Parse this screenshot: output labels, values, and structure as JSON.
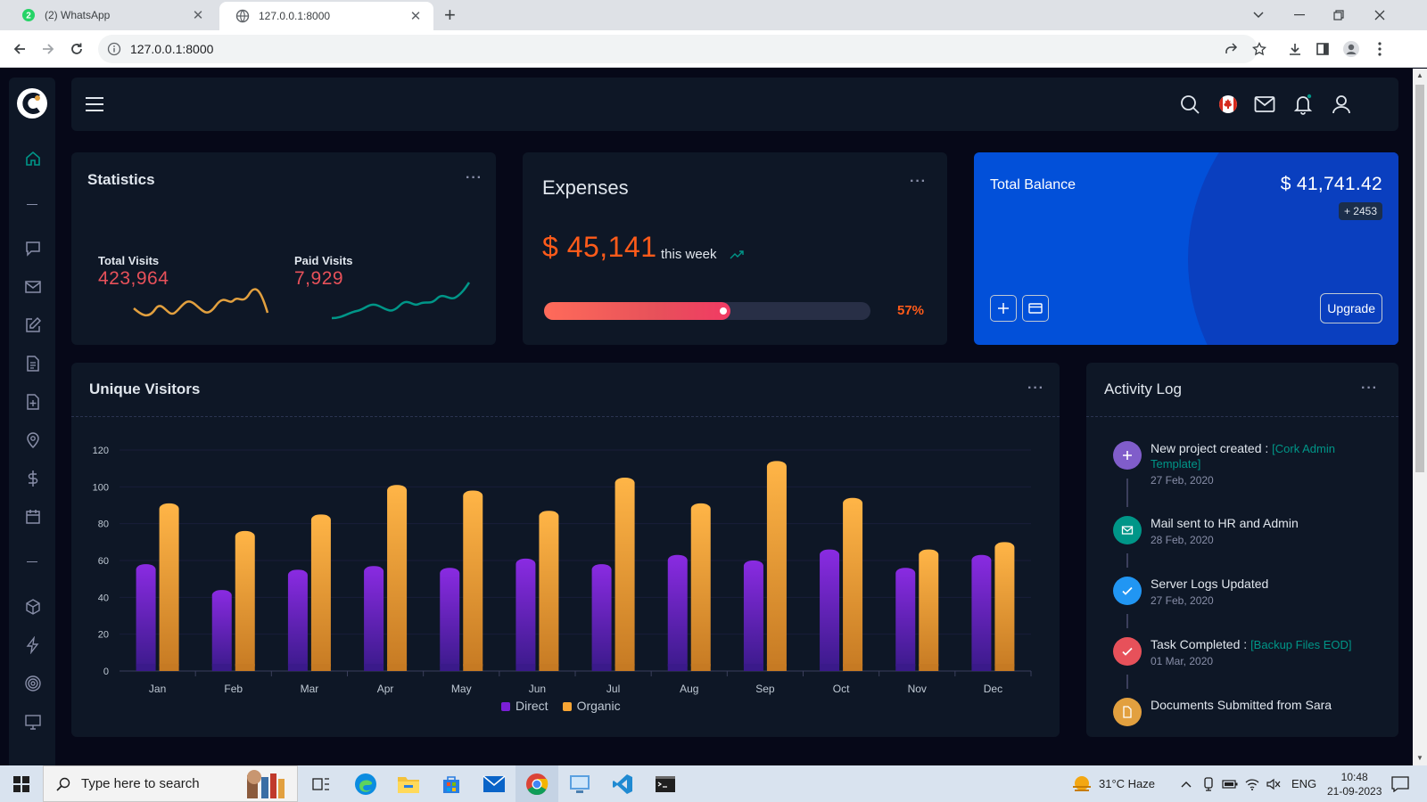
{
  "browser": {
    "tabs": [
      {
        "title": "(2) WhatsApp",
        "active": false
      },
      {
        "title": "127.0.0.1:8000",
        "active": true
      }
    ],
    "address": "127.0.0.1:8000"
  },
  "statistics": {
    "title": "Statistics",
    "total_visits_label": "Total Visits",
    "total_visits_value": "423,964",
    "paid_visits_label": "Paid Visits",
    "paid_visits_value": "7,929"
  },
  "expenses": {
    "title": "Expenses",
    "amount": "$ 45,141",
    "period": "this week",
    "progress_percent": 57,
    "progress_label": "57%"
  },
  "balance": {
    "title": "Total Balance",
    "value": "$ 41,741.42",
    "badge": "+ 2453",
    "upgrade_label": "Upgrade"
  },
  "visitors": {
    "title": "Unique Visitors",
    "legend": [
      "Direct",
      "Organic"
    ]
  },
  "chart_data": {
    "type": "bar",
    "categories": [
      "Jan",
      "Feb",
      "Mar",
      "Apr",
      "May",
      "Jun",
      "Jul",
      "Aug",
      "Sep",
      "Oct",
      "Nov",
      "Dec"
    ],
    "series": [
      {
        "name": "Direct",
        "values": [
          58,
          44,
          55,
          57,
          56,
          61,
          58,
          63,
          60,
          66,
          56,
          63
        ],
        "color": "#7b1fd6"
      },
      {
        "name": "Organic",
        "values": [
          91,
          76,
          85,
          101,
          98,
          87,
          105,
          91,
          114,
          94,
          66,
          70
        ],
        "color": "#f7a534"
      }
    ],
    "yticks": [
      0,
      20,
      40,
      60,
      80,
      100,
      120
    ],
    "ylim": [
      0,
      120
    ],
    "legend_position": "bottom"
  },
  "activity": {
    "title": "Activity Log",
    "items": [
      {
        "text": "New project created : ",
        "highlight": "[Cork Admin Template]",
        "date": "27 Feb, 2020",
        "color": "#805dca",
        "icon": "plus-icon"
      },
      {
        "text": "Mail sent to HR and Admin",
        "highlight": "",
        "date": "28 Feb, 2020",
        "color": "#009688",
        "icon": "mail-icon"
      },
      {
        "text": "Server Logs Updated",
        "highlight": "",
        "date": "27 Feb, 2020",
        "color": "#2196f3",
        "icon": "check-icon"
      },
      {
        "text": "Task Completed : ",
        "highlight": "[Backup Files EOD]",
        "date": "01 Mar, 2020",
        "color": "#e7515a",
        "icon": "check-icon"
      },
      {
        "text": "Documents Submitted from Sara",
        "highlight": "",
        "date": "",
        "color": "#e2a03f",
        "icon": "file-icon"
      }
    ]
  },
  "taskbar": {
    "search_placeholder": "Type here to search",
    "weather": "31°C  Haze",
    "lang": "ENG",
    "time": "10:48",
    "date": "21-09-2023"
  }
}
